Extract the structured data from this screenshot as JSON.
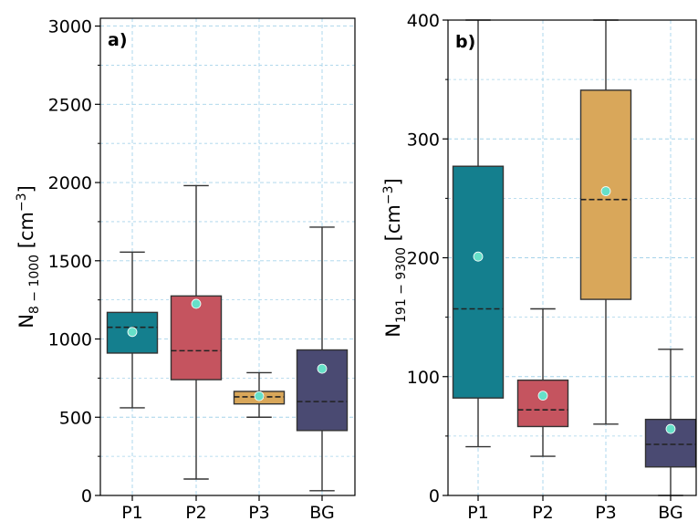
{
  "chart_data": [
    {
      "type": "box",
      "panel_label": "a)",
      "ylabel": "N",
      "ylabel_sub": "8 − 1000",
      "ylabel_unit_pre": " [cm",
      "ylabel_unit_sup": "−3",
      "ylabel_unit_post": "]",
      "ylim": [
        0,
        3050
      ],
      "yticks": [
        0,
        500,
        1000,
        1500,
        2000,
        2500,
        3000
      ],
      "grid": true,
      "categories": [
        "P1",
        "P2",
        "P3",
        "BG"
      ],
      "boxes": [
        {
          "category": "P1",
          "whislo": 560,
          "q1": 910,
          "median": 1075,
          "q3": 1170,
          "whishi": 1555,
          "mean": 1045,
          "color": "#147f8e"
        },
        {
          "category": "P2",
          "whislo": 105,
          "q1": 740,
          "median": 925,
          "q3": 1275,
          "whishi": 1980,
          "mean": 1225,
          "color": "#c5545f"
        },
        {
          "category": "P3",
          "whislo": 500,
          "q1": 585,
          "median": 630,
          "q3": 665,
          "whishi": 785,
          "mean": 635,
          "color": "#d9a75a"
        },
        {
          "category": "BG",
          "whislo": 30,
          "q1": 415,
          "median": 600,
          "q3": 930,
          "whishi": 1715,
          "mean": 810,
          "color": "#4a4a72"
        }
      ]
    },
    {
      "type": "box",
      "panel_label": "b)",
      "ylabel": "N",
      "ylabel_sub": "191 − 9300",
      "ylabel_unit_pre": " [cm",
      "ylabel_unit_sup": "−3",
      "ylabel_unit_post": "]",
      "ylim": [
        0,
        400
      ],
      "yticks": [
        0,
        100,
        200,
        300,
        400
      ],
      "grid": true,
      "categories": [
        "P1",
        "P2",
        "P3",
        "BG"
      ],
      "boxes": [
        {
          "category": "P1",
          "whislo": 41,
          "q1": 82,
          "median": 157,
          "q3": 277,
          "whishi": 400,
          "mean": 201,
          "color": "#147f8e"
        },
        {
          "category": "P2",
          "whislo": 33,
          "q1": 58,
          "median": 72,
          "q3": 97,
          "whishi": 157,
          "mean": 84,
          "color": "#c5545f"
        },
        {
          "category": "P3",
          "whislo": 60,
          "q1": 165,
          "median": 249,
          "q3": 341,
          "whishi": 400,
          "mean": 256,
          "color": "#d9a75a"
        },
        {
          "category": "BG",
          "whislo": 0,
          "q1": 24,
          "median": 43,
          "q3": 64,
          "whishi": 123,
          "mean": 56,
          "color": "#4a4a72"
        }
      ]
    }
  ],
  "style": {
    "mean_marker_color": "#66e0c8",
    "grid_color": "#a6d3ea",
    "line_color": "#333333"
  }
}
